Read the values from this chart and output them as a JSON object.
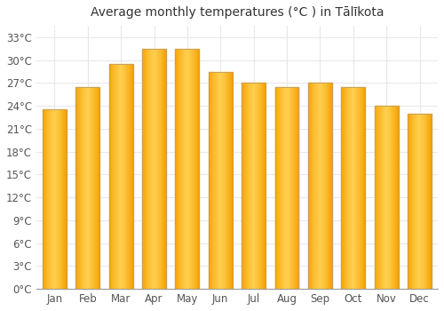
{
  "title": "Average monthly temperatures (°C ) in Tālīkota",
  "months": [
    "Jan",
    "Feb",
    "Mar",
    "Apr",
    "May",
    "Jun",
    "Jul",
    "Aug",
    "Sep",
    "Oct",
    "Nov",
    "Dec"
  ],
  "values": [
    23.5,
    26.5,
    29.5,
    31.5,
    31.5,
    28.5,
    27.0,
    26.5,
    27.0,
    26.5,
    24.0,
    23.0
  ],
  "bar_color_center": "#FFD050",
  "bar_color_edge": "#F5A000",
  "bar_border_color": "#C8A060",
  "ytick_labels": [
    "0°C",
    "3°C",
    "6°C",
    "9°C",
    "12°C",
    "15°C",
    "18°C",
    "21°C",
    "24°C",
    "27°C",
    "30°C",
    "33°C"
  ],
  "ytick_values": [
    0,
    3,
    6,
    9,
    12,
    15,
    18,
    21,
    24,
    27,
    30,
    33
  ],
  "ylim": [
    0,
    34.5
  ],
  "background_color": "#ffffff",
  "grid_color": "#e8e8e8",
  "title_fontsize": 10,
  "tick_fontsize": 8.5,
  "bar_width": 0.72
}
